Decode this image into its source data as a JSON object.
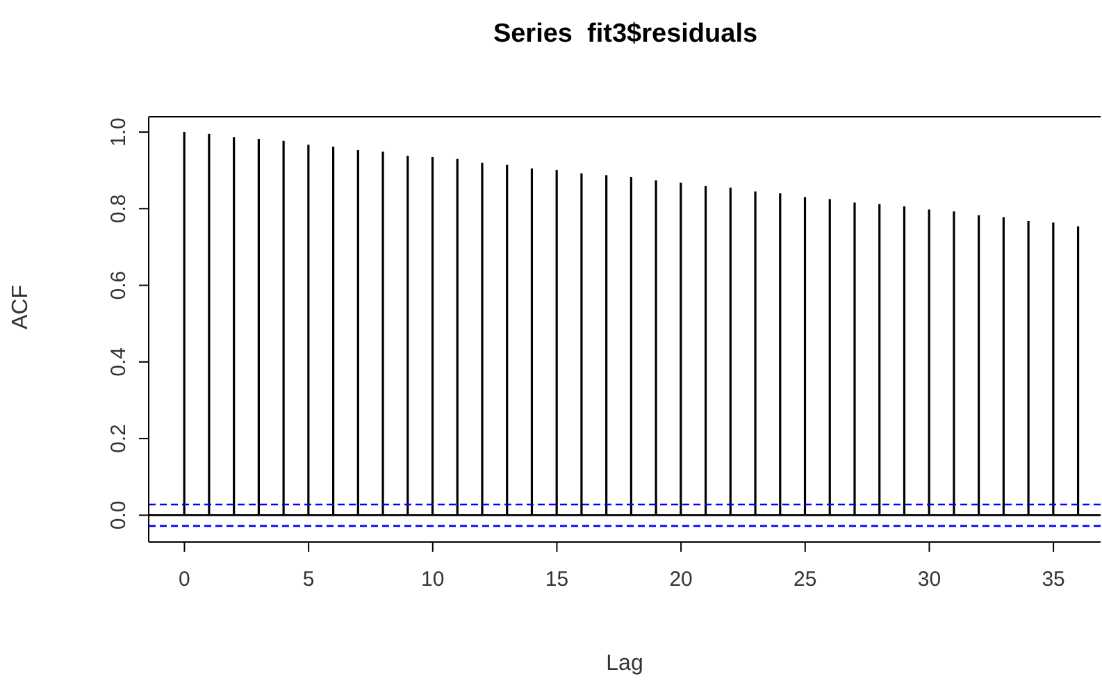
{
  "chart_data": {
    "type": "bar",
    "title": "Series  fit3$residuals",
    "xlabel": "Lag",
    "ylabel": "ACF",
    "x": [
      0,
      1,
      2,
      3,
      4,
      5,
      6,
      7,
      8,
      9,
      10,
      11,
      12,
      13,
      14,
      15,
      16,
      17,
      18,
      19,
      20,
      21,
      22,
      23,
      24,
      25,
      26,
      27,
      28,
      29,
      30,
      31,
      32,
      33,
      34,
      35,
      36
    ],
    "values": [
      1.0,
      0.995,
      0.987,
      0.982,
      0.977,
      0.967,
      0.962,
      0.953,
      0.949,
      0.938,
      0.935,
      0.93,
      0.92,
      0.915,
      0.905,
      0.901,
      0.892,
      0.887,
      0.882,
      0.874,
      0.868,
      0.859,
      0.855,
      0.845,
      0.84,
      0.83,
      0.825,
      0.816,
      0.812,
      0.806,
      0.798,
      0.793,
      0.783,
      0.778,
      0.768,
      0.764,
      0.754
    ],
    "color": "#000000",
    "xlim": [
      -1.44,
      36.9
    ],
    "xticks": [
      0,
      5,
      10,
      15,
      20,
      25,
      30,
      35
    ],
    "ylim": [
      -0.07,
      1.04
    ],
    "yticks": [
      {
        "value": 0,
        "label": "0.0"
      },
      0.2,
      0.4,
      0.6,
      0.8,
      {
        "value": 1,
        "label": "1.0"
      }
    ],
    "ref_lines": [
      {
        "axis": "y",
        "value": 0,
        "color": "#000000",
        "line_style": "solid"
      },
      {
        "axis": "y",
        "value": 0.028,
        "color": "#0000ff",
        "line_style": "dashed"
      },
      {
        "axis": "y",
        "value": -0.028,
        "color": "#0000ff",
        "line_style": "dashed"
      }
    ],
    "grid": false,
    "legend": false
  }
}
